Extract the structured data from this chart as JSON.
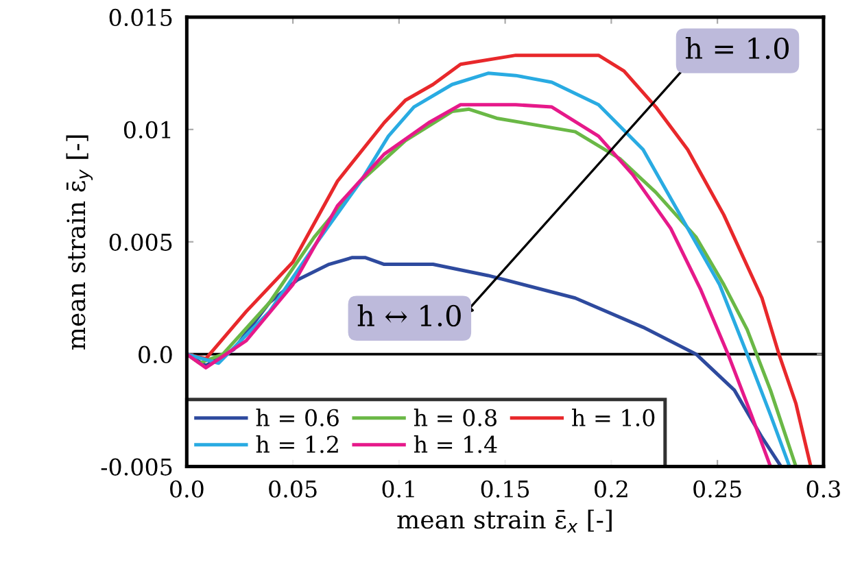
{
  "chart_data": {
    "type": "line",
    "xlabel": "mean strain ε̄$_{x}$ [-]",
    "ylabel": "mean strain ε̄$_{y}$ [-]",
    "xlim": [
      0,
      0.3
    ],
    "ylim": [
      -0.005,
      0.015
    ],
    "xticks": [
      {
        "value": 0,
        "label": "0.0"
      },
      0.05,
      0.1,
      0.15,
      0.2,
      0.25,
      0.3
    ],
    "yticks": [
      -0.005,
      {
        "value": 0,
        "label": "0.0"
      },
      0.005,
      0.01,
      0.015
    ],
    "grid": false,
    "legend": "bottom left",
    "marker": "none",
    "line_style": "solid",
    "ref_lines": [
      {
        "axis": "y",
        "value": 0,
        "color": "#000000",
        "line_style": "solid"
      }
    ],
    "annotations": [
      "h = 1.0",
      "h ↔ 1.0"
    ],
    "series": [
      {
        "name": "h = 0.6",
        "color": "#2e4a9e",
        "x": [
          0,
          0.009,
          0.022,
          0.039,
          0.052,
          0.067,
          0.078,
          0.084,
          0.093,
          0.116,
          0.142,
          0.183,
          0.215,
          0.24,
          0.258,
          0.271,
          0.28
        ],
        "values": [
          0,
          -0.0005,
          0.0002,
          0.0023,
          0.0033,
          0.004,
          0.0043,
          0.0043,
          0.004,
          0.004,
          0.0035,
          0.0025,
          0.0012,
          0,
          -0.0016,
          -0.0037,
          -0.005
        ]
      },
      {
        "name": "h = 0.8",
        "color": "#6ab846",
        "x": [
          0,
          0.006,
          0.017,
          0.039,
          0.06,
          0.082,
          0.103,
          0.125,
          0.133,
          0.146,
          0.183,
          0.204,
          0.221,
          0.24,
          0.253,
          0.264,
          0.275,
          0.287
        ],
        "values": [
          0,
          -0.0004,
          0,
          0.0023,
          0.0052,
          0.0077,
          0.0095,
          0.0108,
          0.0109,
          0.0105,
          0.0099,
          0.0087,
          0.0072,
          0.0052,
          0.0031,
          0.0011,
          -0.0016,
          -0.005
        ]
      },
      {
        "name": "h = 1.0",
        "color": "#e8282b",
        "x": [
          0,
          0.009,
          0.028,
          0.05,
          0.071,
          0.093,
          0.103,
          0.116,
          0.129,
          0.155,
          0.194,
          0.206,
          0.221,
          0.236,
          0.253,
          0.271,
          0.279,
          0.287,
          0.294
        ],
        "values": [
          0,
          -0.0002,
          0.0019,
          0.0041,
          0.0077,
          0.0103,
          0.0113,
          0.012,
          0.0129,
          0.0133,
          0.0133,
          0.0126,
          0.011,
          0.0091,
          0.0062,
          0.0025,
          0,
          -0.0022,
          -0.005
        ]
      },
      {
        "name": "h = 1.2",
        "color": "#29abe2",
        "x": [
          0,
          0.015,
          0.039,
          0.06,
          0.082,
          0.095,
          0.107,
          0.125,
          0.142,
          0.155,
          0.172,
          0.194,
          0.215,
          0.236,
          0.251,
          0.264,
          0.275,
          0.284
        ],
        "values": [
          0,
          -0.0004,
          0.0019,
          0.0048,
          0.0077,
          0.0097,
          0.011,
          0.012,
          0.0125,
          0.0124,
          0.0121,
          0.0111,
          0.0091,
          0.0056,
          0.0031,
          0,
          -0.0027,
          -0.005
        ]
      },
      {
        "name": "h = 1.4",
        "color": "#e6198a",
        "x": [
          0,
          0.009,
          0.028,
          0.05,
          0.071,
          0.093,
          0.114,
          0.129,
          0.138,
          0.155,
          0.172,
          0.194,
          0.21,
          0.228,
          0.242,
          0.255,
          0.266,
          0.275
        ],
        "values": [
          0,
          -0.0006,
          0.0006,
          0.0031,
          0.0066,
          0.0089,
          0.0103,
          0.0111,
          0.0111,
          0.0111,
          0.011,
          0.0097,
          0.008,
          0.0056,
          0.0029,
          0,
          -0.0027,
          -0.005
        ]
      }
    ]
  }
}
